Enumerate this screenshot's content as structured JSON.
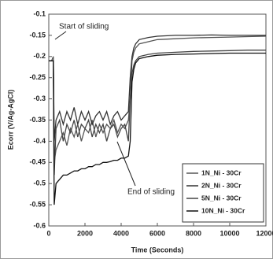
{
  "chart_data": {
    "type": "line",
    "xlabel": "Time (Seconds)",
    "ylabel": "Ecorr (V/Ag-AgCl)",
    "annotations": [
      "Start of sliding",
      "End of sliding"
    ],
    "x": [
      0,
      150,
      250,
      300,
      400,
      600,
      800,
      1000,
      1200,
      1400,
      1600,
      1800,
      2000,
      2200,
      2400,
      2600,
      2800,
      3000,
      3200,
      3400,
      3600,
      3800,
      4000,
      4200,
      4400,
      4500,
      4600,
      4700,
      4800,
      5000,
      5500,
      6000,
      7000,
      8000,
      9000,
      10000,
      11000,
      12000
    ],
    "xlim": [
      0,
      12000
    ],
    "xticks": [
      0,
      2000,
      4000,
      6000,
      8000,
      10000,
      12000
    ],
    "ylim": [
      -0.6,
      -0.1
    ],
    "yticks": [
      -0.1,
      -0.15,
      -0.2,
      -0.25,
      -0.3,
      -0.35,
      -0.4,
      -0.45,
      -0.5,
      -0.55,
      -0.6
    ],
    "legend": "lower right",
    "series": [
      {
        "name": "1N_Ni - 30Cr",
        "color": "#555555",
        "values": [
          -0.21,
          -0.21,
          -0.2,
          -0.45,
          -0.42,
          -0.4,
          -0.38,
          -0.41,
          -0.37,
          -0.39,
          -0.36,
          -0.4,
          -0.37,
          -0.38,
          -0.35,
          -0.39,
          -0.36,
          -0.38,
          -0.36,
          -0.37,
          -0.35,
          -0.38,
          -0.36,
          -0.37,
          -0.35,
          -0.3,
          -0.21,
          -0.19,
          -0.18,
          -0.17,
          -0.165,
          -0.16,
          -0.158,
          -0.156,
          -0.155,
          -0.154,
          -0.153,
          -0.152
        ]
      },
      {
        "name": "2N_Ni - 30Cr",
        "color": "#333333",
        "values": [
          -0.21,
          -0.21,
          -0.21,
          -0.4,
          -0.35,
          -0.33,
          -0.36,
          -0.33,
          -0.35,
          -0.32,
          -0.36,
          -0.33,
          -0.35,
          -0.33,
          -0.36,
          -0.34,
          -0.33,
          -0.35,
          -0.33,
          -0.36,
          -0.34,
          -0.33,
          -0.35,
          -0.34,
          -0.33,
          -0.25,
          -0.2,
          -0.18,
          -0.17,
          -0.16,
          -0.155,
          -0.152,
          -0.15,
          -0.15,
          -0.149,
          -0.15,
          -0.15,
          -0.15
        ]
      },
      {
        "name": "5N_Ni - 30Cr",
        "color": "#444444",
        "values": [
          -0.21,
          -0.21,
          -0.21,
          -0.48,
          -0.37,
          -0.35,
          -0.4,
          -0.36,
          -0.38,
          -0.35,
          -0.39,
          -0.36,
          -0.37,
          -0.35,
          -0.39,
          -0.36,
          -0.38,
          -0.36,
          -0.4,
          -0.37,
          -0.36,
          -0.39,
          -0.37,
          -0.36,
          -0.4,
          -0.3,
          -0.24,
          -0.22,
          -0.21,
          -0.2,
          -0.195,
          -0.192,
          -0.19,
          -0.188,
          -0.187,
          -0.186,
          -0.185,
          -0.185
        ]
      },
      {
        "name": "10N_Ni - 30Cr",
        "color": "#111111",
        "values": [
          -0.21,
          -0.21,
          -0.21,
          -0.55,
          -0.5,
          -0.49,
          -0.48,
          -0.48,
          -0.475,
          -0.47,
          -0.47,
          -0.465,
          -0.465,
          -0.46,
          -0.46,
          -0.455,
          -0.455,
          -0.45,
          -0.45,
          -0.448,
          -0.445,
          -0.445,
          -0.44,
          -0.44,
          -0.435,
          -0.4,
          -0.26,
          -0.23,
          -0.215,
          -0.205,
          -0.2,
          -0.197,
          -0.195,
          -0.194,
          -0.193,
          -0.192,
          -0.192,
          -0.192
        ]
      }
    ]
  }
}
